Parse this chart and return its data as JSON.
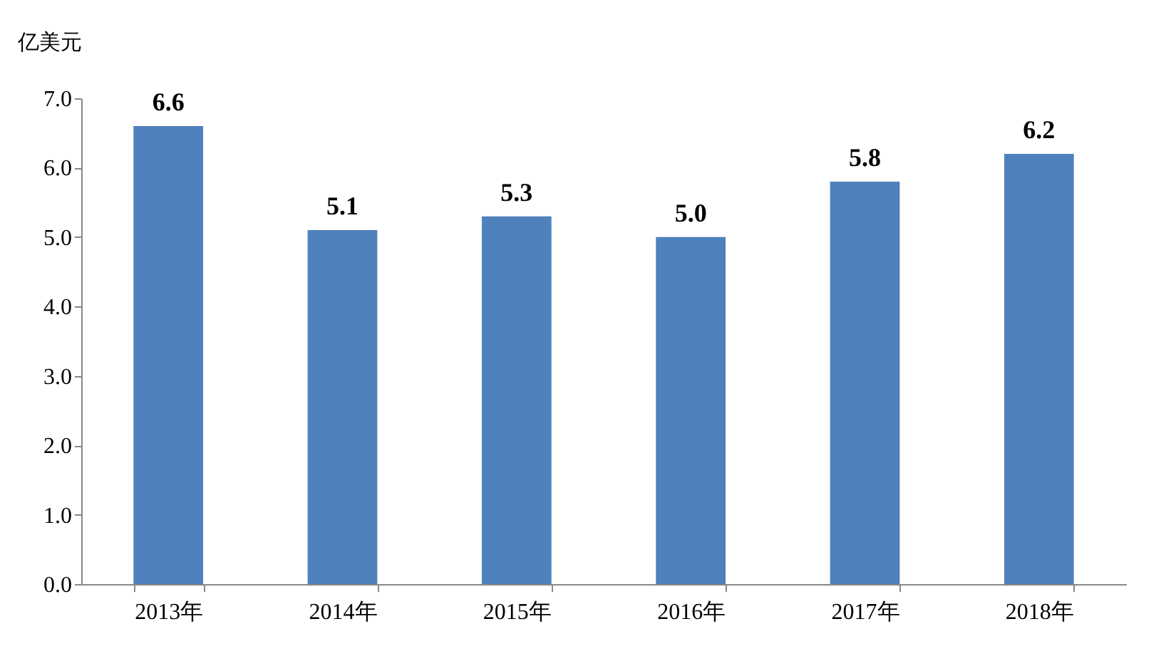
{
  "chart_data": {
    "type": "bar",
    "ylabel": "亿美元",
    "categories": [
      "2013年",
      "2014年",
      "2015年",
      "2016年",
      "2017年",
      "2018年"
    ],
    "values": [
      6.6,
      5.1,
      5.3,
      5.0,
      5.8,
      6.2
    ],
    "value_labels": [
      "6.6",
      "5.1",
      "5.3",
      "5.0",
      "5.8",
      "6.2"
    ],
    "color": "#4f81bd",
    "ylim": [
      0,
      7
    ],
    "yticks": [
      {
        "value": 0,
        "label": "0.0"
      },
      {
        "value": 1,
        "label": "1.0"
      },
      {
        "value": 2,
        "label": "2.0"
      },
      {
        "value": 3,
        "label": "3.0"
      },
      {
        "value": 4,
        "label": "4.0"
      },
      {
        "value": 5,
        "label": "5.0"
      },
      {
        "value": 6,
        "label": "6.0"
      },
      {
        "value": 7,
        "label": "7.0"
      }
    ],
    "grid": false
  }
}
